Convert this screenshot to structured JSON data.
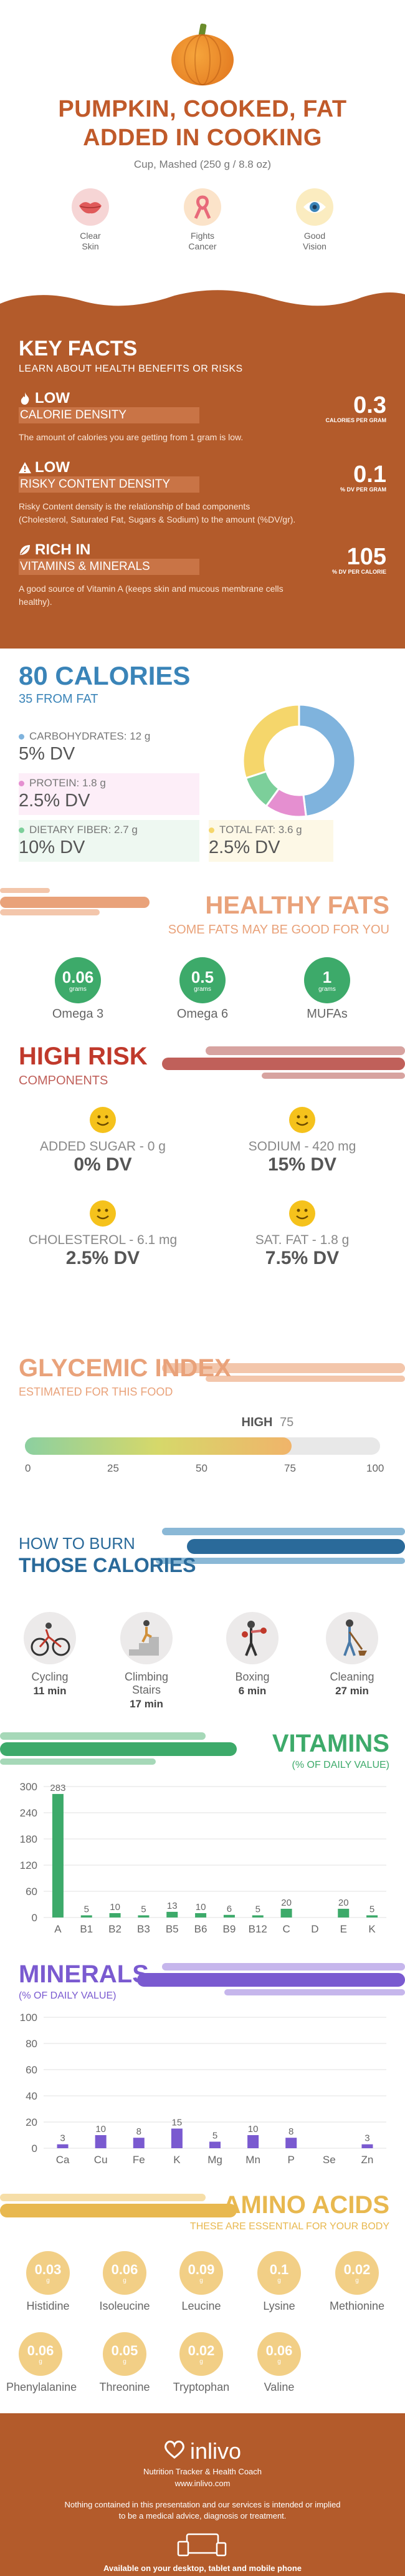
{
  "header": {
    "title_line1": "PUMPKIN, COOKED, FAT",
    "title_line2": "ADDED IN COOKING",
    "serving": "Cup, Mashed (250 g / 8.8 oz)",
    "benefits": [
      {
        "label_line1": "Clear",
        "label_line2": "Skin",
        "icon": "lips-icon",
        "color": "#e05a5a"
      },
      {
        "label_line1": "Fights",
        "label_line2": "Cancer",
        "icon": "ribbon-icon",
        "color": "#e86a7a"
      },
      {
        "label_line1": "Good",
        "label_line2": "Vision",
        "icon": "eye-icon",
        "color": "#3a84b8"
      }
    ]
  },
  "key_facts": {
    "title": "KEY FACTS",
    "subtitle": "LEARN ABOUT HEALTH BENEFITS OR RISKS",
    "facts": [
      {
        "level": "LOW",
        "name": "CALORIE DENSITY",
        "value": "0.3",
        "unit": "CALORIES PER GRAM",
        "description": "The amount of calories you are getting from 1 gram is low.",
        "icon": "flame-icon"
      },
      {
        "level": "LOW",
        "name": "RISKY CONTENT DENSITY",
        "value": "0.1",
        "unit": "% DV PER GRAM",
        "description_line1": "Risky Content density is the relationship of bad components",
        "description_line2": "(Cholesterol, Saturated Fat, Sugars & Sodium) to the amount (%DV/gr).",
        "icon": "warning-icon"
      },
      {
        "level": "RICH  IN",
        "name": "VITAMINS & MINERALS",
        "value": "105",
        "unit": "% DV PER CALORIE",
        "description_line1": "A good source of Vitamin A (keeps skin and mucous membrane cells",
        "description_line2": "healthy).",
        "icon": "leaf-icon"
      }
    ]
  },
  "calories": {
    "title": "80 CALORIES",
    "subtitle": "35 FROM FAT",
    "macros": [
      {
        "label": "CARBOHYDRATES: 12 g",
        "dv": "5% DV",
        "color": "#7fb3dd"
      },
      {
        "label": "PROTEIN: 1.8 g",
        "dv": "2.5% DV",
        "color": "#e58fd0"
      },
      {
        "label": "DIETARY FIBER: 2.7 g",
        "dv": "10% DV",
        "color": "#7ccf9a"
      },
      {
        "label": "TOTAL FAT: 3.6 g",
        "dv": "2.5% DV",
        "color": "#f5d66b"
      }
    ],
    "donut": [
      {
        "name": "carbs",
        "value": 48,
        "color": "#7fb3dd"
      },
      {
        "name": "protein",
        "value": 12,
        "color": "#e58fd0"
      },
      {
        "name": "fiber",
        "value": 10,
        "color": "#7ccf9a"
      },
      {
        "name": "fat",
        "value": 30,
        "color": "#f5d66b"
      }
    ]
  },
  "healthy_fats": {
    "title": "HEALTHY FATS",
    "subtitle": "SOME FATS MAY BE GOOD FOR YOU",
    "items": [
      {
        "value": "0.06",
        "unit": "grams",
        "label": "Omega 3"
      },
      {
        "value": "0.5",
        "unit": "grams",
        "label": "Omega 6"
      },
      {
        "value": "1",
        "unit": "grams",
        "label": "MUFAs"
      }
    ]
  },
  "high_risk": {
    "title": "HIGH RISK",
    "subtitle": "COMPONENTS",
    "items": [
      {
        "label": "ADDED SUGAR - 0 g",
        "dv": "0% DV"
      },
      {
        "label": "SODIUM - 420 mg",
        "dv": "15% DV"
      },
      {
        "label": "CHOLESTEROL - 6.1 mg",
        "dv": "2.5% DV"
      },
      {
        "label": "SAT. FAT - 1.8 g",
        "dv": "7.5% DV"
      }
    ]
  },
  "glycemic": {
    "title": "GLYCEMIC INDEX",
    "subtitle": "ESTIMATED FOR THIS FOOD",
    "level": "HIGH",
    "value": "75",
    "value_num": 75,
    "ticks": [
      "0",
      "25",
      "50",
      "75",
      "100"
    ]
  },
  "burn": {
    "title_line1": "HOW TO BURN",
    "title_line2": "THOSE CALORIES",
    "activities": [
      {
        "name": "Cycling",
        "time": "11 min",
        "icon": "cycling-icon"
      },
      {
        "name": "Climbing Stairs",
        "time": "17 min",
        "icon": "stairs-icon"
      },
      {
        "name": "Boxing",
        "time": "6 min",
        "icon": "boxing-icon"
      },
      {
        "name": "Cleaning",
        "time": "27 min",
        "icon": "cleaning-icon"
      }
    ]
  },
  "vitamins": {
    "title": "VITAMINS",
    "subtitle": "(% OF DAILY VALUE)",
    "color": "#3daa6a"
  },
  "minerals": {
    "title": "MINERALS",
    "subtitle": "(% OF DAILY VALUE)",
    "color": "#7a5ad0"
  },
  "chart_data": [
    {
      "type": "bar",
      "title": "VITAMINS",
      "subtitle": "(% OF DAILY VALUE)",
      "categories": [
        "A",
        "B1",
        "B2",
        "B3",
        "B5",
        "B6",
        "B9",
        "B12",
        "C",
        "D",
        "E",
        "K"
      ],
      "values": [
        283,
        5,
        10,
        5,
        13,
        10,
        6,
        5,
        20,
        0,
        20,
        5
      ],
      "value_labels": [
        "283",
        "5",
        "10",
        "5",
        "13",
        "10",
        "6",
        "5",
        "20",
        "",
        "20",
        "5"
      ],
      "yticks": [
        "0",
        "60",
        "120",
        "180",
        "240",
        "300"
      ],
      "ylim": [
        0,
        300
      ]
    },
    {
      "type": "bar",
      "title": "MINERALS",
      "subtitle": "(% OF DAILY VALUE)",
      "categories": [
        "Ca",
        "Cu",
        "Fe",
        "K",
        "Mg",
        "Mn",
        "P",
        "Se",
        "Zn"
      ],
      "values": [
        3,
        10,
        8,
        15,
        5,
        10,
        8,
        0,
        3
      ],
      "value_labels": [
        "3",
        "10",
        "8",
        "15",
        "5",
        "10",
        "8",
        "",
        "3"
      ],
      "yticks": [
        "0",
        "20",
        "40",
        "60",
        "80",
        "100"
      ],
      "ylim": [
        0,
        100
      ]
    }
  ],
  "amino": {
    "title": "AMINO ACIDS",
    "subtitle": "THESE ARE ESSENTIAL FOR YOUR BODY",
    "items": [
      {
        "value": "0.03",
        "unit": "g",
        "label": "Histidine"
      },
      {
        "value": "0.06",
        "unit": "g",
        "label": "Isoleucine"
      },
      {
        "value": "0.09",
        "unit": "g",
        "label": "Leucine"
      },
      {
        "value": "0.1",
        "unit": "g",
        "label": "Lysine"
      },
      {
        "value": "0.02",
        "unit": "g",
        "label": "Methionine"
      },
      {
        "value": "0.06",
        "unit": "g",
        "label": "Phenylalanine"
      },
      {
        "value": "0.05",
        "unit": "g",
        "label": "Threonine"
      },
      {
        "value": "0.02",
        "unit": "g",
        "label": "Tryptophan"
      },
      {
        "value": "0.06",
        "unit": "g",
        "label": "Valine"
      }
    ]
  },
  "footer": {
    "brand": "inlivo",
    "tagline": "Nutrition Tracker & Health Coach",
    "url": "www.inlivo.com",
    "disclaimer_line1": "Nothing contained in this presentation and our services is intended or implied",
    "disclaimer_line2": "to be a medical advice, diagnosis or treatment.",
    "availability": "Available on your desktop, tablet and mobile phone"
  },
  "colors": {
    "brand_orange": "#b35b2b",
    "title_orange": "#c05a2a",
    "blue": "#3a84b8",
    "green": "#3daa6a",
    "peach": "#e9a27a",
    "red": "#c0392b",
    "purple": "#7a5ad0",
    "amino": "#e8b84f"
  }
}
